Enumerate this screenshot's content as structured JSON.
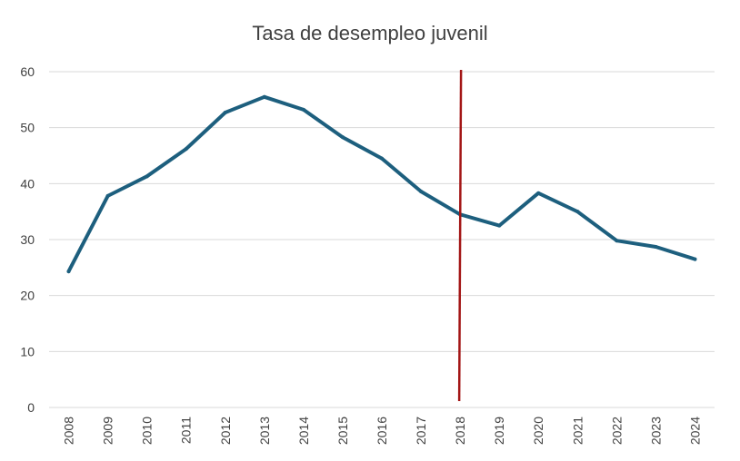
{
  "chart_data": {
    "type": "line",
    "title": "Tasa de desempleo juvenil",
    "xlabel": "",
    "ylabel": "",
    "x": [
      "2008",
      "2009",
      "2010",
      "2011",
      "2012",
      "2013",
      "2014",
      "2015",
      "2016",
      "2017",
      "2018",
      "2019",
      "2020",
      "2021",
      "2022",
      "2023",
      "2024"
    ],
    "y_ticks": [
      "0",
      "10",
      "20",
      "30",
      "40",
      "50",
      "60"
    ],
    "ylim": [
      0,
      60
    ],
    "grid": true,
    "legend": "none",
    "series": [
      {
        "color": "#1d5f7e",
        "values": [
          24.3,
          37.8,
          41.3,
          46.2,
          52.7,
          55.5,
          53.2,
          48.3,
          44.5,
          38.6,
          34.5,
          32.5,
          38.3,
          35.0,
          29.8,
          28.7,
          26.5
        ]
      }
    ],
    "marker_line": {
      "x": "2018",
      "color": "#a31515"
    }
  }
}
